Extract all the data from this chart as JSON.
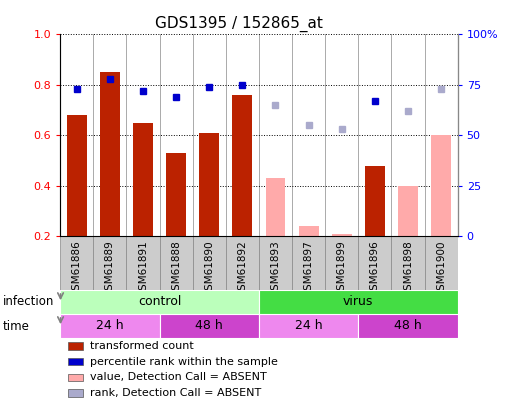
{
  "title": "GDS1395 / 152865_at",
  "samples": [
    "GSM61886",
    "GSM61889",
    "GSM61891",
    "GSM61888",
    "GSM61890",
    "GSM61892",
    "GSM61893",
    "GSM61897",
    "GSM61899",
    "GSM61896",
    "GSM61898",
    "GSM61900"
  ],
  "bar_values": [
    0.68,
    0.85,
    0.65,
    0.53,
    0.61,
    0.76,
    null,
    null,
    null,
    0.48,
    null,
    null
  ],
  "bar_absent": [
    null,
    null,
    null,
    null,
    null,
    null,
    0.43,
    0.24,
    0.21,
    null,
    0.4,
    0.6
  ],
  "rank_values": [
    73,
    78,
    72,
    69,
    74,
    75,
    null,
    null,
    null,
    67,
    null,
    null
  ],
  "rank_absent": [
    null,
    null,
    null,
    null,
    null,
    null,
    65,
    55,
    53,
    null,
    62,
    73
  ],
  "ylim_left": [
    0.2,
    1.0
  ],
  "ylim_right": [
    0,
    100
  ],
  "yticks_left": [
    0.2,
    0.4,
    0.6,
    0.8,
    1.0
  ],
  "ytick_labels_right": [
    "0",
    "25",
    "50",
    "75",
    "100%"
  ],
  "bar_color_present": "#bb2200",
  "bar_color_absent": "#ffaaaa",
  "dot_color_present": "#0000cc",
  "dot_color_absent": "#aaaacc",
  "bar_width": 0.6,
  "infection_groups": [
    {
      "label": "control",
      "start": 0,
      "end": 6,
      "color": "#bbffbb"
    },
    {
      "label": "virus",
      "start": 6,
      "end": 12,
      "color": "#44dd44"
    }
  ],
  "time_groups": [
    {
      "label": "24 h",
      "start": 0,
      "end": 3,
      "color": "#ee88ee"
    },
    {
      "label": "48 h",
      "start": 3,
      "end": 6,
      "color": "#cc44cc"
    },
    {
      "label": "24 h",
      "start": 6,
      "end": 9,
      "color": "#ee88ee"
    },
    {
      "label": "48 h",
      "start": 9,
      "end": 12,
      "color": "#cc44cc"
    }
  ],
  "legend_items": [
    {
      "label": "transformed count",
      "color": "#bb2200"
    },
    {
      "label": "percentile rank within the sample",
      "color": "#0000cc"
    },
    {
      "label": "value, Detection Call = ABSENT",
      "color": "#ffaaaa"
    },
    {
      "label": "rank, Detection Call = ABSENT",
      "color": "#aaaacc"
    }
  ],
  "infection_label": "infection",
  "time_label": "time",
  "sample_bg": "#cccccc",
  "spine_color": "#888888"
}
